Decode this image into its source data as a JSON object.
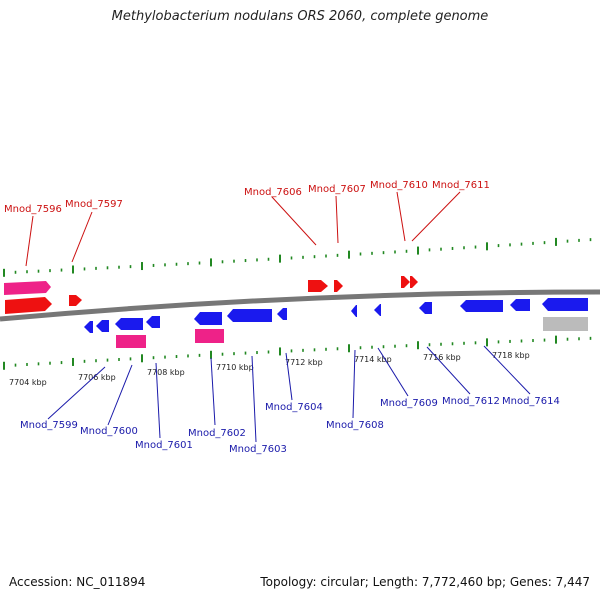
{
  "title": "Methylobacterium nodulans ORS 2060, complete genome",
  "footer": {
    "accession": "Accession: NC_011894",
    "topology": "Topology: circular; Length: 7,772,460 bp; Genes: 7,447"
  },
  "colors": {
    "forward_gene": "#ee1111",
    "reverse_gene": "#1a1aee",
    "pink_feature": "#ee2288",
    "grey_feature": "#bbbbbb",
    "tick": "#228822",
    "backbone": "#777777",
    "top_label": "#cc1111",
    "bottom_label": "#1a1aaa"
  },
  "kbp_labels": [
    "7704 kbp",
    "7706 kbp",
    "7708 kbp",
    "7710 kbp",
    "7712 kbp",
    "7714 kbp",
    "7716 kbp",
    "7718 kbp"
  ],
  "top_labels": [
    "Mnod_7596",
    "Mnod_7597",
    "Mnod_7606",
    "Mnod_7607",
    "Mnod_7610",
    "Mnod_7611"
  ],
  "bottom_labels": [
    "Mnod_7599",
    "Mnod_7600",
    "Mnod_7601",
    "Mnod_7602",
    "Mnod_7603",
    "Mnod_7604",
    "Mnod_7608",
    "Mnod_7609",
    "Mnod_7612",
    "Mnod_7614"
  ]
}
